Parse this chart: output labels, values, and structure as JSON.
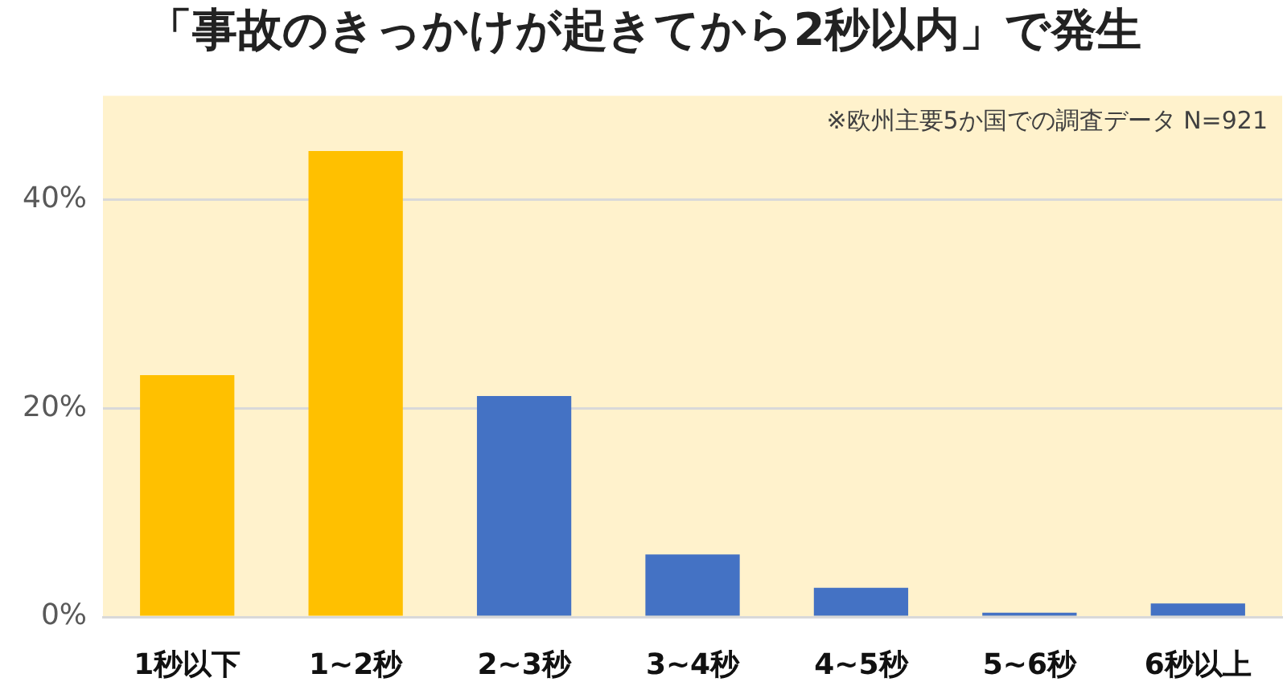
{
  "chart_data": {
    "type": "bar",
    "title": "「事故のきっかけが起きてから2秒以内」で発生",
    "annotations": [
      "※欧州主要5か国での調査データ N=921"
    ],
    "categories": [
      "1秒以下",
      "1~2秒",
      "2~3秒",
      "3~4秒",
      "4~5秒",
      "5~6秒",
      "6秒以上"
    ],
    "values": [
      23.2,
      44.7,
      21.2,
      6.0,
      2.8,
      0.4,
      1.3
    ],
    "colors": [
      "#ffc000",
      "#ffc000",
      "#4472c4",
      "#4472c4",
      "#4472c4",
      "#4472c4",
      "#4472c4"
    ],
    "ylim": [
      0,
      50
    ],
    "yticks": [
      {
        "value": 0,
        "label": "0%"
      },
      {
        "value": 20,
        "label": "20%"
      },
      {
        "value": 40,
        "label": "40%"
      }
    ],
    "grid": "y"
  }
}
